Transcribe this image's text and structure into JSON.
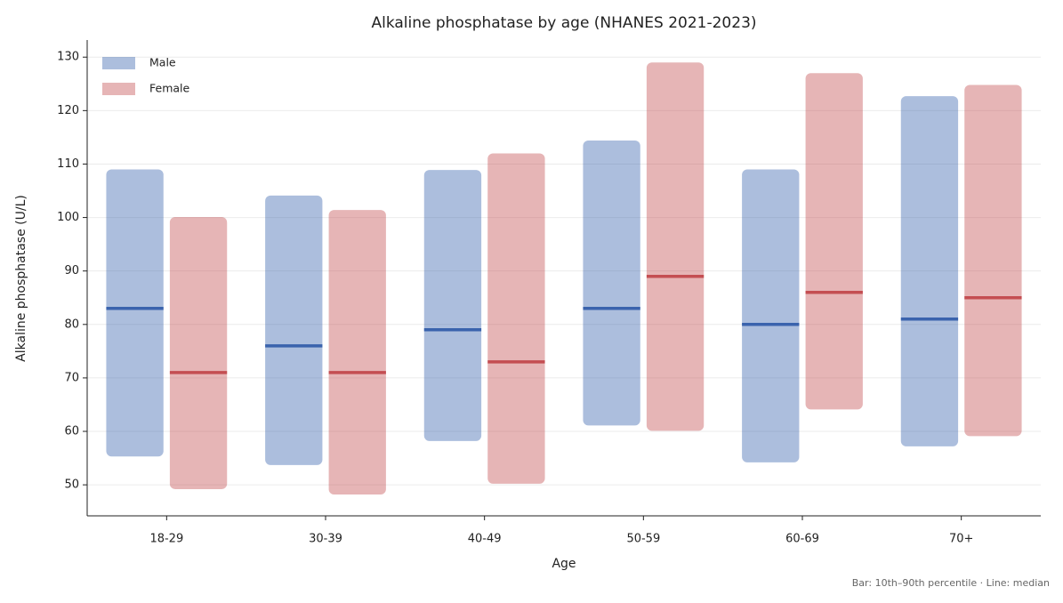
{
  "chart_data": {
    "type": "range_bar",
    "title": "Alkaline phosphatase by age (NHANES 2021-2023)",
    "x_label": "Age",
    "y_label": "Alkaline phosphatase (U/L)",
    "note": "Bar: 10th–90th percentile  ·  Line: median",
    "categories": [
      "18-29",
      "30-39",
      "40-49",
      "50-59",
      "60-69",
      "70+"
    ],
    "series": [
      {
        "name": "Male",
        "color": "#3a63ad",
        "low": [
          55.3,
          53.7,
          58.2,
          61.1,
          54.2,
          57.2
        ],
        "high": [
          109,
          104.1,
          108.9,
          114.4,
          109,
          122.7
        ],
        "median": [
          83,
          76,
          79,
          83,
          80,
          81
        ]
      },
      {
        "name": "Female",
        "color": "#c44e52",
        "low": [
          49.2,
          48.2,
          50.2,
          60.1,
          64.1,
          59.1
        ],
        "high": [
          100.1,
          101.4,
          112,
          129,
          127,
          124.8
        ],
        "median": [
          71,
          71,
          73,
          89,
          86,
          85
        ]
      }
    ],
    "ylim": [
      44.2,
      133.2
    ],
    "yticks": [
      50,
      60,
      70,
      80,
      90,
      100,
      110,
      120,
      130
    ],
    "grid": true,
    "legend": "upper-left"
  }
}
